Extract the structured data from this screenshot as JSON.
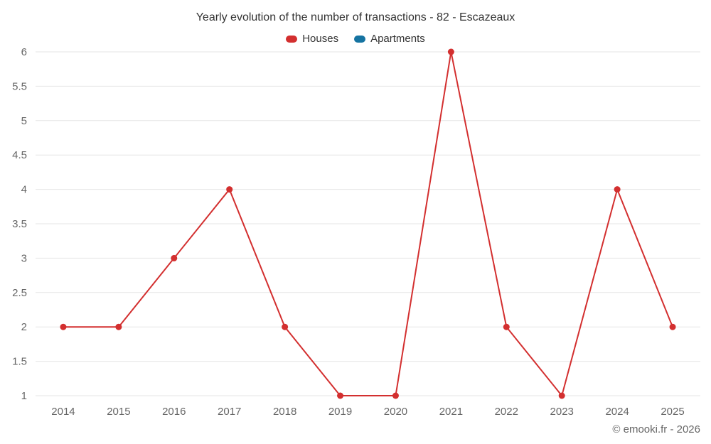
{
  "header": {
    "title": "Yearly evolution of the number of transactions - 82 - Escazeaux"
  },
  "legend": {
    "items": [
      {
        "label": "Houses",
        "color": "#d32f2f"
      },
      {
        "label": "Apartments",
        "color": "#1573a1"
      }
    ]
  },
  "footer": {
    "credit": "© emooki.fr - 2026"
  },
  "chart_data": {
    "type": "line",
    "title": "Yearly evolution of the number of transactions - 82 - Escazeaux",
    "categories": [
      "2014",
      "2015",
      "2016",
      "2017",
      "2018",
      "2019",
      "2020",
      "2021",
      "2022",
      "2023",
      "2024",
      "2025"
    ],
    "series": [
      {
        "name": "Houses",
        "color": "#d32f2f",
        "values": [
          2,
          2,
          3,
          4,
          2,
          1,
          1,
          6,
          2,
          1,
          4,
          2
        ]
      },
      {
        "name": "Apartments",
        "color": "#1573a1",
        "values": []
      }
    ],
    "xlabel": "",
    "ylabel": "",
    "ylim": [
      1,
      6
    ],
    "ytick_step": 0.5,
    "grid": true,
    "legend_position": "top"
  }
}
